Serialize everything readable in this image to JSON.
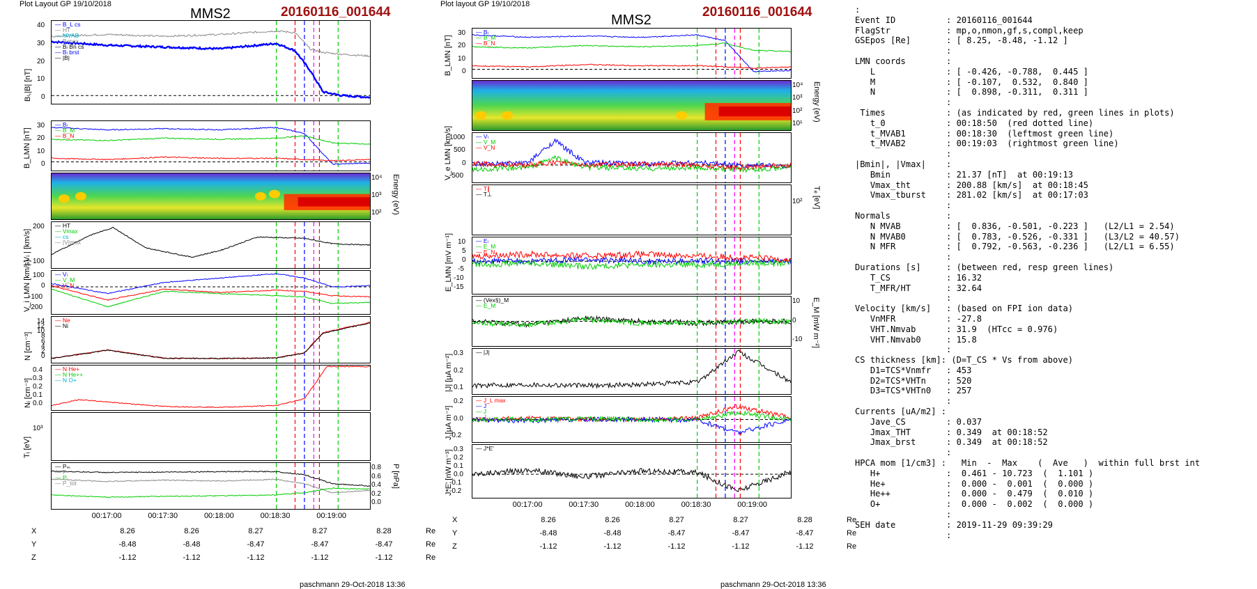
{
  "header": {
    "layout_left": "Plot Layout GP 19/10/2018",
    "layout_mid": "Plot layout GP 19/10/2018",
    "title": "MMS2",
    "event": "20160116_001644",
    "footer": "paschmann 29-Oct-2018 13:36"
  },
  "time_ticks": [
    "00:17:00",
    "00:17:30",
    "00:18:00",
    "00:18:30",
    "00:19:00"
  ],
  "coords_table": {
    "rows": [
      {
        "label": "X",
        "values": [
          "8.26",
          "8.26",
          "8.27",
          "8.27",
          "8.28"
        ],
        "unit": "Re"
      },
      {
        "label": "Y",
        "values": [
          "-8.48",
          "-8.48",
          "-8.47",
          "-8.47",
          "-8.47"
        ],
        "unit": "Re"
      },
      {
        "label": "Z",
        "values": [
          "-1.12",
          "-1.12",
          "-1.12",
          "-1.12",
          "-1.12"
        ],
        "unit": "Re"
      }
    ]
  },
  "info_lines": [
    ":",
    "Event ID          : 20160116_001644",
    "FlagStr           : mp,o,nmon,gf,s,compl,keep",
    "GSEpos [Re]       : [ 8.25, -8.48, -1.12 ]",
    "                  :",
    "LMN coords        :",
    "   L              : [ -0.426, -0.788,  0.445 ]",
    "   M              : [ -0.107,  0.532,  0.840 ]",
    "   N              : [  0.898, -0.311,  0.311 ]",
    "                  :",
    " Times            : (as indicated by red, green lines in plots)",
    "   t_0            : 00:18:50  (red dotted line)",
    "   t_MVAB1        : 00:18:30  (leftmost green line)",
    "   t_MVAB2        : 00:19:03  (rightmost green line)",
    "                  :",
    "|Bmin|, |Vmax|    :",
    "   Bmin           : 21.37 [nT]  at 00:19:13",
    "   Vmax_tht       : 200.88 [km/s]  at 00:18:45",
    "   Vmax_tburst    : 281.02 [km/s]  at 00:17:03",
    "                  :",
    "Normals           :",
    "   N MVAB         : [  0.836, -0.501, -0.223 ]   (L2/L1 = 2.54)",
    "   N MVAB0        : [  0.783, -0.526, -0.331 ]   (L3/L2 = 40.57)",
    "   N MFR          : [  0.792, -0.563, -0.236 ]   (L2/L1 = 6.55)",
    "                  :",
    "Durations [s]     : (between red, resp green lines)",
    "   T_CS           : 16.32",
    "   T_MFR/HT       : 32.64",
    "                  :",
    "Velocity [km/s]   : (based on FPI ion data)",
    "   VnMFR          : -27.8",
    "   VHT.Nmvab      : 31.9  (HTcc = 0.976)",
    "   VHT.Nmvab0     : 15.8",
    "                  :",
    "CS thickness [km]: (D=T_CS * Vs from above)",
    "   D1=TCS*Vnmfr   : 453",
    "   D2=TCS*VHTn    : 520",
    "   D3=TCS*VHTn0   : 257",
    "                  :",
    "Currents [uA/m2] :",
    "   Jave_CS        : 0.037",
    "   Jmax_THT       : 0.349  at 00:18:52",
    "   Jmax_brst      : 0.349  at 00:18:52",
    "                  :",
    "HPCA mom [1/cm3] :   Min  -  Max    (  Ave   )  within full brst int",
    "   H+             :  0.461 - 10.723  (  1.101 )",
    "   He+            :  0.000 -  0.001  (  0.000 )",
    "   He++           :  0.000 -  0.479  (  0.010 )",
    "   O+             :  0.000 -  0.002  (  0.000 )",
    "                  :",
    "SEH date          : 2019-11-29 09:39:29",
    "                  :"
  ],
  "colors": {
    "red": "#ff0000",
    "green": "#00cc00",
    "blue": "#0000ff",
    "black": "#000000",
    "magenta": "#ff00ff",
    "cyan": "#00b0d0",
    "grey": "#888888",
    "darkred": "#a01010"
  },
  "chart_data": [
    {
      "type": "line",
      "column": "left",
      "id": "L1",
      "ylabel": "Bₗ,|B| [nT]",
      "ylim": [
        -3,
        40
      ],
      "yticks": [
        "40",
        "30",
        "20",
        "10",
        "0"
      ],
      "legend": [
        "B_L cs",
        "HT",
        "MVAB",
        "Bₗmax",
        "Bₗ Bn cs",
        "Bₗ brst",
        "|B|"
      ],
      "x": [
        "00:16:30",
        "00:17:00",
        "00:17:30",
        "00:18:00",
        "00:18:30",
        "00:18:40",
        "00:18:48",
        "00:18:55",
        "00:19:05",
        "00:19:20"
      ],
      "series": [
        {
          "name": "Bₗ brst",
          "values": [
            30,
            28,
            27,
            26,
            29,
            25,
            14,
            2,
            0,
            -1
          ]
        },
        {
          "name": "|B|",
          "values": [
            33,
            34,
            33,
            34,
            36,
            35,
            26,
            24,
            23,
            22
          ]
        }
      ],
      "vlines": [
        "00:18:30",
        "00:18:45",
        "00:18:50",
        "00:18:55",
        "00:19:03"
      ]
    },
    {
      "type": "line",
      "column": "left",
      "id": "L2",
      "ylabel": "B_LMN [nT]",
      "ylim": [
        -5,
        32
      ],
      "yticks": [
        "30",
        "20",
        "10",
        "0"
      ],
      "legend": [
        "Bₗ",
        "B_M",
        "B_N"
      ],
      "x": [
        "00:16:30",
        "00:17:00",
        "00:17:30",
        "00:18:00",
        "00:18:30",
        "00:18:45",
        "00:19:00",
        "00:19:20"
      ],
      "series": [
        {
          "name": "Bₗ",
          "values": [
            29,
            27,
            28,
            27,
            29,
            24,
            -2,
            -1
          ]
        },
        {
          "name": "B_M",
          "values": [
            19,
            18,
            20,
            19,
            20,
            22,
            16,
            15
          ]
        },
        {
          "name": "B_N",
          "values": [
            3,
            2,
            4,
            3,
            3,
            2,
            1,
            2
          ]
        }
      ]
    },
    {
      "type": "heatmap",
      "column": "left",
      "id": "L3",
      "ylabel": "Energy (eV)",
      "yticks": [
        "10⁴",
        "10³",
        "10²"
      ]
    },
    {
      "type": "line",
      "column": "left",
      "id": "L4",
      "ylabel": "| Vᵢ | [km/s]",
      "ylim": [
        0,
        300
      ],
      "yticks": [
        "200",
        "100"
      ],
      "legend": [
        "HT",
        "Vmax",
        "cs",
        "|V|max"
      ],
      "x": [
        "00:16:30",
        "00:16:50",
        "00:17:03",
        "00:17:20",
        "00:17:45",
        "00:18:00",
        "00:18:20",
        "00:18:45",
        "00:19:00",
        "00:19:20"
      ],
      "series": [
        {
          "name": "|V|",
          "values": [
            80,
            220,
            281,
            130,
            60,
            110,
            210,
            200,
            160,
            150
          ]
        }
      ]
    },
    {
      "type": "line",
      "column": "left",
      "id": "L5",
      "ylabel": "V_i LMN [km/s]",
      "ylim": [
        -220,
        120
      ],
      "yticks": [
        "100",
        "0",
        "-100",
        "-200"
      ],
      "legend": [
        "Vₗ",
        "V_M",
        "V_N"
      ],
      "x": [
        "00:16:30",
        "00:17:00",
        "00:17:30",
        "00:18:00",
        "00:18:30",
        "00:18:45",
        "00:19:00",
        "00:19:20"
      ],
      "series": [
        {
          "name": "Vₗ",
          "values": [
            30,
            -60,
            40,
            80,
            120,
            80,
            0,
            10
          ]
        },
        {
          "name": "V_M",
          "values": [
            -20,
            -180,
            -40,
            -60,
            -80,
            -90,
            -150,
            -140
          ]
        },
        {
          "name": "V_N",
          "values": [
            10,
            -120,
            -20,
            -50,
            -30,
            -40,
            -80,
            -90
          ]
        }
      ]
    },
    {
      "type": "line",
      "column": "left",
      "id": "L6",
      "ylabel": "N [cm⁻³]",
      "ylim": [
        0,
        14
      ],
      "yticks": [
        "14",
        "12",
        "10",
        "8",
        "6",
        "4",
        "2",
        "0"
      ],
      "legend": [
        "Ne",
        "Ni"
      ],
      "x": [
        "00:16:30",
        "00:17:00",
        "00:17:30",
        "00:18:00",
        "00:18:30",
        "00:18:45",
        "00:18:55",
        "00:19:20"
      ],
      "series": [
        {
          "name": "Ne",
          "values": [
            0.5,
            3.5,
            0.6,
            0.5,
            0.7,
            2.5,
            9.5,
            13
          ]
        },
        {
          "name": "Ni",
          "values": [
            0.5,
            3.4,
            0.6,
            0.5,
            0.7,
            2.4,
            9.3,
            12.8
          ]
        }
      ]
    },
    {
      "type": "line",
      "column": "left",
      "id": "L7",
      "ylabel": "Nᵢ [cm⁻³]",
      "ylim": [
        0,
        0.45
      ],
      "yticks": [
        "0.4",
        "0.3",
        "0.2",
        "0.1",
        "0.0"
      ],
      "legend": [
        "N  He+",
        "N  He++",
        "N  O+"
      ],
      "x": [
        "00:16:30",
        "00:16:45",
        "00:17:00",
        "00:17:30",
        "00:18:00",
        "00:18:30",
        "00:18:45",
        "00:18:57"
      ],
      "series": [
        {
          "name": "N  He++",
          "values": [
            0.02,
            0.09,
            0.06,
            0.01,
            0.0,
            0.02,
            0.1,
            0.47
          ]
        }
      ]
    },
    {
      "type": "line",
      "column": "left",
      "id": "L8",
      "ylabel": "Tᵢ [eV]",
      "yticks": [
        "10³"
      ],
      "x": [
        "00:16:30",
        "00:16:50",
        "00:17:00",
        "00:17:10",
        "00:17:30",
        "00:18:00",
        "00:18:30",
        "00:18:50",
        "00:19:20"
      ],
      "series": [
        {
          "name": "T∥",
          "values": [
            1000,
            600,
            1200,
            1500,
            1400,
            1300,
            1500,
            700,
            400
          ]
        },
        {
          "name": "T⊥",
          "values": [
            1000,
            500,
            1100,
            1450,
            1380,
            1250,
            1450,
            650,
            380
          ]
        }
      ]
    },
    {
      "type": "line",
      "column": "left",
      "id": "L9",
      "ylabel": "P [nPa]",
      "ylim": [
        0,
        0.9
      ],
      "yticks": [
        "0.8",
        "0.6",
        "0.4",
        "0.2",
        "0.0"
      ],
      "legend": [
        "Pₘ",
        "P",
        "Pᵢ",
        "P_tot"
      ],
      "x": [
        "00:16:30",
        "00:17:00",
        "00:17:30",
        "00:18:00",
        "00:18:30",
        "00:18:45",
        "00:19:00",
        "00:19:20"
      ],
      "series": [
        {
          "name": "P_tot",
          "values": [
            0.78,
            0.75,
            0.76,
            0.77,
            0.77,
            0.7,
            0.5,
            0.45
          ]
        },
        {
          "name": "Pᵢ",
          "values": [
            0.6,
            0.55,
            0.58,
            0.56,
            0.6,
            0.5,
            0.3,
            0.35
          ]
        },
        {
          "name": "Pₘ",
          "values": [
            0.25,
            0.2,
            0.22,
            0.23,
            0.25,
            0.3,
            0.4,
            0.38
          ]
        }
      ]
    },
    {
      "type": "line",
      "column": "middle",
      "id": "M1",
      "ylabel": "B_LMN [nT]",
      "ylim": [
        -5,
        32
      ],
      "yticks": [
        "30",
        "20",
        "10",
        "0"
      ],
      "legend": [
        "Bₗ",
        "B_M",
        "B_N"
      ],
      "x": [
        "00:16:30",
        "00:17:00",
        "00:17:30",
        "00:18:00",
        "00:18:30",
        "00:18:45",
        "00:19:00",
        "00:19:20"
      ],
      "series": [
        {
          "name": "Bₗ",
          "values": [
            29,
            27,
            28,
            27,
            29,
            24,
            -2,
            -1
          ]
        },
        {
          "name": "B_M",
          "values": [
            19,
            18,
            20,
            19,
            20,
            22,
            16,
            15
          ]
        },
        {
          "name": "B_N",
          "values": [
            3,
            2,
            4,
            3,
            3,
            2,
            1,
            2
          ]
        }
      ]
    },
    {
      "type": "heatmap",
      "column": "middle",
      "id": "M2",
      "ylabel": "Energy (eV)",
      "yticks": [
        "10⁴",
        "10³",
        "10²",
        "10¹"
      ]
    },
    {
      "type": "line",
      "column": "middle",
      "id": "M3",
      "ylabel": "V_e LMN [km/s]",
      "ylim": [
        -600,
        1200
      ],
      "yticks": [
        "1000",
        "500",
        "0",
        "-500"
      ],
      "legend": [
        "Vₗ",
        "V_M",
        "V_N"
      ],
      "x": [
        "00:16:30",
        "00:17:00",
        "00:17:14",
        "00:17:30",
        "00:18:00",
        "00:18:30",
        "00:18:50",
        "00:19:20"
      ],
      "series": [
        {
          "name": "Vₗ",
          "values": [
            0,
            100,
            1000,
            100,
            50,
            100,
            0,
            -50
          ]
        },
        {
          "name": "V_M",
          "values": [
            -200,
            -100,
            300,
            -100,
            -150,
            -100,
            -200,
            -100
          ]
        },
        {
          "name": "V_N",
          "values": [
            50,
            0,
            100,
            0,
            50,
            0,
            -100,
            0
          ]
        }
      ]
    },
    {
      "type": "line",
      "column": "middle",
      "id": "M4",
      "ylabel": "Tₑ [eV]",
      "yticks": [
        "10²"
      ],
      "legend": [
        "T∥",
        "T⊥"
      ],
      "x": [
        "00:16:30",
        "00:16:45",
        "00:17:00",
        "00:17:15",
        "00:17:30",
        "00:18:00",
        "00:18:20",
        "00:18:40",
        "00:19:20"
      ],
      "series": [
        {
          "name": "T∥",
          "values": [
            200,
            60,
            120,
            190,
            230,
            140,
            90,
            40,
            40
          ]
        },
        {
          "name": "T⊥",
          "values": [
            190,
            55,
            110,
            180,
            220,
            130,
            80,
            38,
            38
          ]
        }
      ]
    },
    {
      "type": "line",
      "column": "middle",
      "id": "M5",
      "ylabel": "E_LMN [mV m⁻¹]",
      "ylim": [
        -17,
        12
      ],
      "yticks": [
        "10",
        "5",
        "0",
        "-5",
        "-10",
        "-15"
      ],
      "legend": [
        "Eₗ",
        "E_M",
        "E_N"
      ],
      "x": [
        "00:16:30",
        "00:17:00",
        "00:17:30",
        "00:18:00",
        "00:18:30",
        "00:19:00",
        "00:19:20"
      ],
      "series": [
        {
          "name": "Eₗ",
          "values": [
            0,
            0,
            1,
            0,
            0,
            0,
            0
          ]
        },
        {
          "name": "E_M",
          "values": [
            -2,
            -1,
            -3,
            -2,
            -2,
            -1,
            -1
          ]
        },
        {
          "name": "E_N",
          "values": [
            3,
            4,
            3,
            4,
            3,
            2,
            1
          ]
        }
      ]
    },
    {
      "type": "line",
      "column": "middle",
      "id": "M6",
      "ylabel": "E_M [mW m⁻²]",
      "ylim": [
        -14,
        14
      ],
      "yticks": [
        "10",
        "0",
        "-10"
      ],
      "legend": [
        "(Vex§)_M",
        "E_M"
      ],
      "x": [
        "00:16:30",
        "00:17:00",
        "00:17:30",
        "00:18:00",
        "00:18:30",
        "00:19:00",
        "00:19:20"
      ],
      "series": [
        {
          "name": "(Vex§)_M",
          "values": [
            0,
            -2,
            2,
            0,
            -1,
            0,
            0
          ]
        },
        {
          "name": "E_M",
          "values": [
            -1,
            -2,
            1,
            -1,
            -1,
            0,
            0
          ]
        }
      ]
    },
    {
      "type": "line",
      "column": "middle",
      "id": "M7",
      "ylabel": "|J| [μA m⁻²]",
      "ylim": [
        0,
        0.35
      ],
      "yticks": [
        "0.3",
        "0.2",
        "0.1"
      ],
      "legend": [
        "|J|"
      ],
      "x": [
        "00:16:30",
        "00:17:00",
        "00:17:30",
        "00:18:00",
        "00:18:30",
        "00:18:52",
        "00:19:20"
      ],
      "series": [
        {
          "name": "|J|",
          "values": [
            0.05,
            0.06,
            0.05,
            0.06,
            0.08,
            0.349,
            0.08
          ]
        }
      ]
    },
    {
      "type": "line",
      "column": "middle",
      "id": "M8",
      "ylabel": "J [μA m⁻²]",
      "ylim": [
        -0.3,
        0.3
      ],
      "yticks": [
        "0.2",
        "0.0",
        "-0.2"
      ],
      "legend": [
        "J_L max",
        "J",
        "J",
        "J"
      ],
      "x": [
        "00:16:30",
        "00:17:00",
        "00:17:30",
        "00:18:00",
        "00:18:30",
        "00:18:52",
        "00:19:20"
      ],
      "series": [
        {
          "name": "Jₗ",
          "values": [
            0,
            0.02,
            0,
            0.01,
            0.02,
            0.2,
            0.02
          ]
        },
        {
          "name": "J_M",
          "values": [
            0,
            -0.02,
            0,
            0,
            -0.01,
            -0.2,
            0
          ]
        },
        {
          "name": "J_N",
          "values": [
            0,
            0,
            0.01,
            0,
            0,
            0.1,
            0
          ]
        }
      ]
    },
    {
      "type": "line",
      "column": "middle",
      "id": "M9",
      "ylabel": "J*E' [nW m⁻³]",
      "ylim": [
        -0.25,
        0.32
      ],
      "yticks": [
        "0.3",
        "0.2",
        "0.1",
        "0.0",
        "-0.1",
        "-0.2"
      ],
      "legend": [
        "J*E'"
      ],
      "x": [
        "00:16:30",
        "00:17:00",
        "00:17:30",
        "00:18:00",
        "00:18:30",
        "00:18:52",
        "00:19:20"
      ],
      "series": [
        {
          "name": "J*E'",
          "values": [
            0,
            0.05,
            -0.03,
            0.04,
            0.02,
            -0.2,
            0.03
          ]
        }
      ]
    }
  ]
}
